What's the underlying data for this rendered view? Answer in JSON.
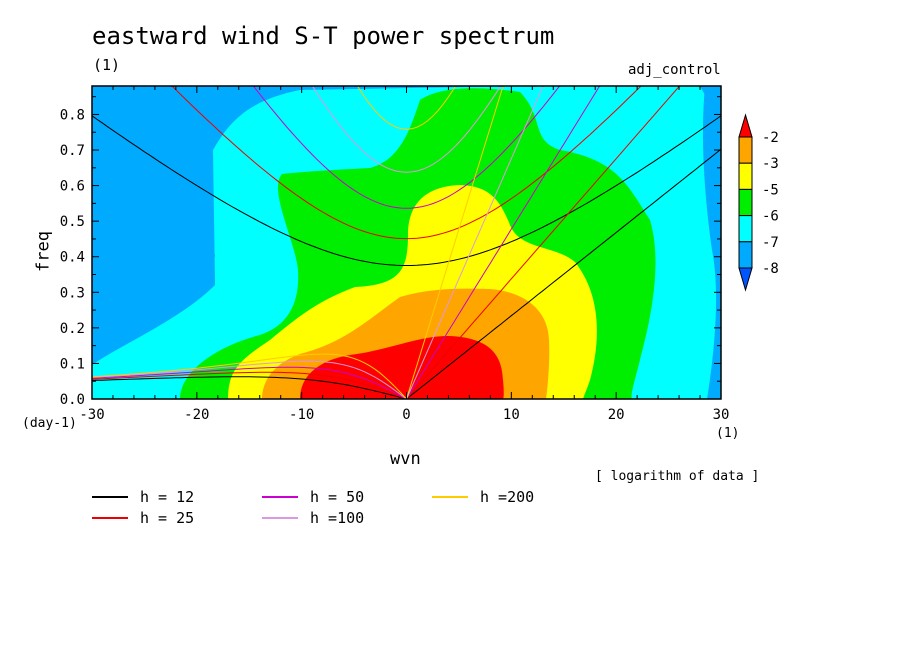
{
  "chart_data": {
    "type": "heatmap",
    "title": "eastward wind S-T power spectrum",
    "title_unit": "(1)",
    "run_label": "adj_control",
    "xlabel": "wvn",
    "x_unit": "(1)",
    "ylabel": "freq",
    "y_unit": "(day-1)",
    "note": "[ logarithm of data ]",
    "xlim": [
      -30,
      30
    ],
    "ylim": [
      0,
      0.88
    ],
    "x_ticks": [
      -30,
      -20,
      -10,
      0,
      10,
      20,
      30
    ],
    "x_tick_labels": [
      "-30",
      "-20",
      "-10",
      "0",
      "10",
      "20",
      "30"
    ],
    "y_ticks": [
      0,
      0.1,
      0.2,
      0.3,
      0.4,
      0.5,
      0.6,
      0.7,
      0.8
    ],
    "y_tick_labels": [
      "0.0",
      "0.1",
      "0.2",
      "0.3",
      "0.4",
      "0.5",
      "0.6",
      "0.7",
      "0.8"
    ],
    "colorbar": {
      "levels": [
        -2,
        -3,
        -5,
        -6,
        -7,
        -8
      ],
      "labels": [
        "-2",
        "-3",
        "-5",
        "-6",
        "-7",
        "-8"
      ],
      "colors": [
        "#ff0000",
        "#ffa500",
        "#ffff00",
        "#00ee00",
        "#00ffff",
        "#00aaff",
        "#0055ff"
      ]
    },
    "field_colors": {
      "level_-8_below": "#0055ff",
      "level_-8_-7": "#00aaff",
      "level_-7_-6": "#00ffff",
      "level_-6_-5": "#00ee00",
      "level_-5_-3": "#ffff00",
      "level_-3_-2": "#ffa500",
      "level_above_-2": "#ff0000"
    },
    "dispersion_curves": [
      {
        "label": "h = 12",
        "h": 12,
        "color": "#000000"
      },
      {
        "label": "h = 25",
        "h": 25,
        "color": "#ee0000"
      },
      {
        "label": "h = 50",
        "h": 50,
        "color": "#cc00cc"
      },
      {
        "label": "h =100",
        "h": 100,
        "color": "#dd99dd"
      },
      {
        "label": "h =200",
        "h": 200,
        "color": "#ffcc00"
      }
    ]
  }
}
